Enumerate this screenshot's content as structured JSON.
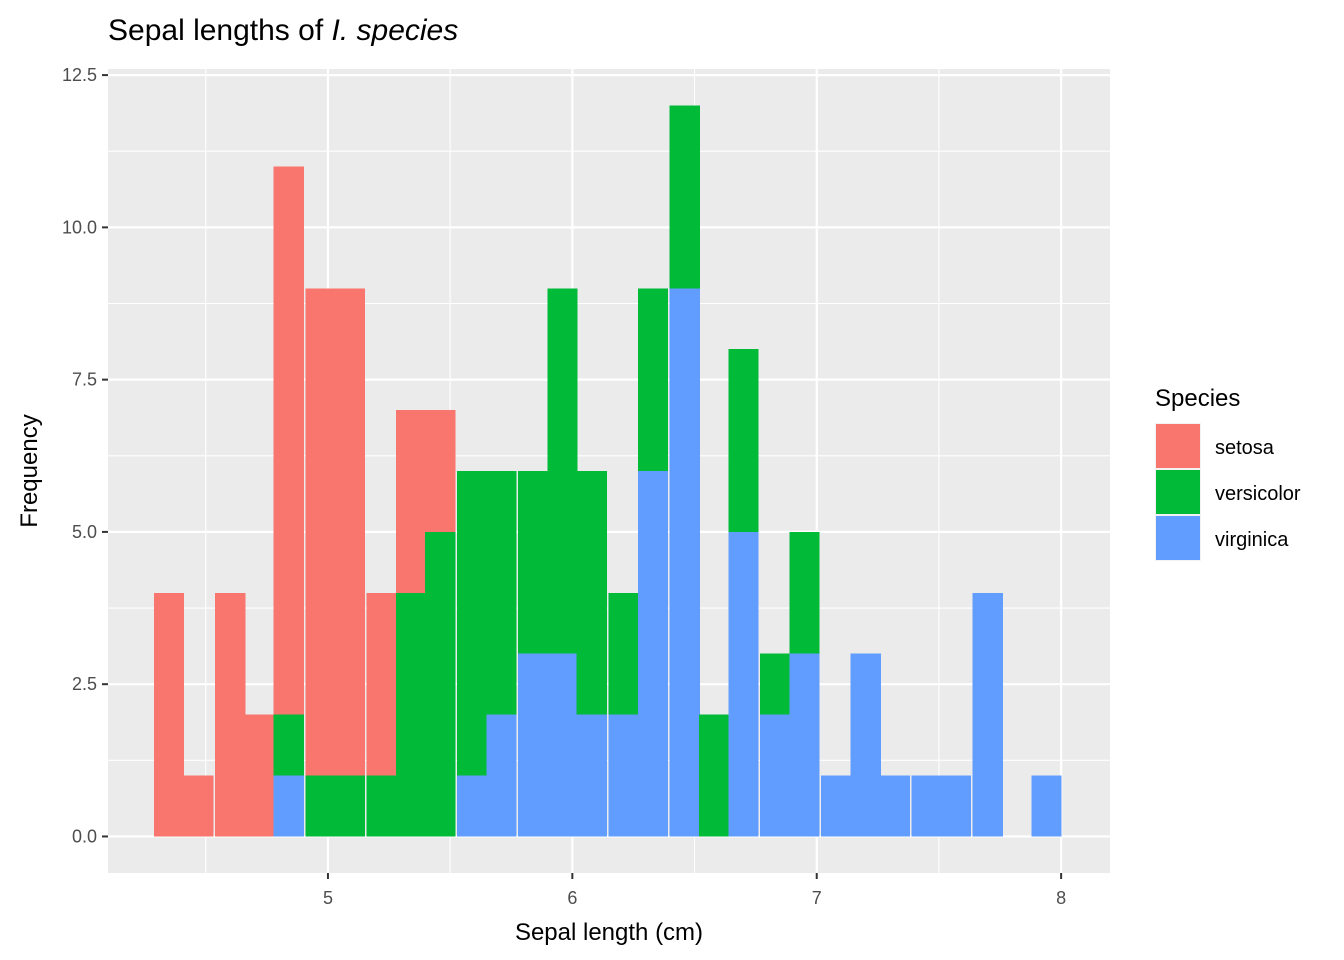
{
  "chart_data": {
    "type": "bar",
    "stacked": true,
    "histogram": true,
    "title_prefix": "Sepal lengths of ",
    "title_italic": "I. species",
    "xlabel": "Sepal length (cm)",
    "ylabel": "Frequency",
    "xlim": [
      4.1,
      8.2
    ],
    "ylim": [
      -0.6,
      12.6
    ],
    "bin_width": 0.124,
    "x_ticks": [
      5,
      6,
      7,
      8
    ],
    "x_tick_labels": [
      "5",
      "6",
      "7",
      "8"
    ],
    "y_ticks": [
      0,
      2.5,
      5,
      7.5,
      10,
      12.5
    ],
    "y_tick_labels": [
      "0.0",
      "2.5",
      "5.0",
      "7.5",
      "10.0",
      "12.5"
    ],
    "grid": true,
    "legend_position": "right",
    "legend_title": "Species",
    "x": [
      4.35,
      4.47,
      4.6,
      4.72,
      4.84,
      4.97,
      5.09,
      5.22,
      5.34,
      5.46,
      5.59,
      5.71,
      5.84,
      5.96,
      6.08,
      6.21,
      6.33,
      6.46,
      6.58,
      6.7,
      6.83,
      6.95,
      7.08,
      7.2,
      7.32,
      7.45,
      7.57,
      7.7,
      7.82,
      7.94
    ],
    "series": [
      {
        "name": "setosa",
        "color": "#F8766D",
        "values": [
          4,
          1,
          4,
          2,
          9,
          8,
          8,
          3,
          3,
          2,
          0,
          0,
          0,
          0,
          0,
          0,
          0,
          0,
          0,
          0,
          0,
          0,
          0,
          0,
          0,
          0,
          0,
          0,
          0,
          0
        ]
      },
      {
        "name": "versicolor",
        "color": "#00BA38",
        "values": [
          0,
          0,
          0,
          0,
          1,
          1,
          1,
          1,
          4,
          5,
          5,
          4,
          3,
          6,
          4,
          2,
          3,
          3,
          2,
          3,
          1,
          2,
          0,
          0,
          0,
          0,
          0,
          0,
          0,
          0
        ]
      },
      {
        "name": "virginica",
        "color": "#619CFF",
        "values": [
          0,
          0,
          0,
          0,
          1,
          0,
          0,
          0,
          0,
          0,
          1,
          2,
          3,
          3,
          2,
          2,
          6,
          9,
          0,
          5,
          2,
          3,
          1,
          3,
          1,
          1,
          1,
          4,
          0,
          1
        ]
      }
    ]
  }
}
